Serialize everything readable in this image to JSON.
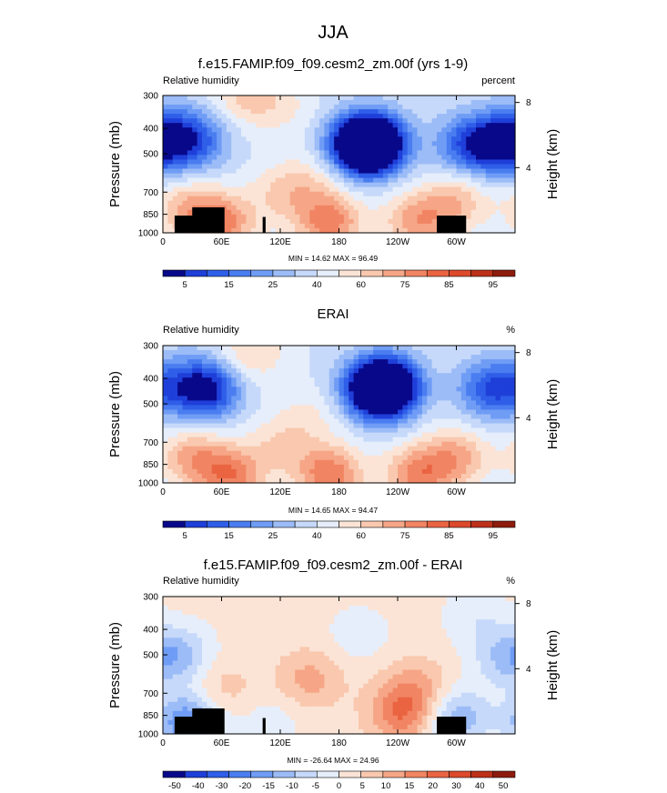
{
  "page_title": "JJA",
  "colors": {
    "abs_scale": [
      "#08088a",
      "#1f3fd9",
      "#2f5ee8",
      "#4a7df0",
      "#6f9cf5",
      "#9cbcf7",
      "#c6d9fa",
      "#e6eefb",
      "#fbe4d6",
      "#f9c8ae",
      "#f6a687",
      "#f18563",
      "#ea6442",
      "#dc4a2b",
      "#bd3019",
      "#8e1c0e"
    ],
    "diff_scale": [
      "#08088a",
      "#1f3fd9",
      "#2f5ee8",
      "#4a7df0",
      "#6f9cf5",
      "#9cbcf7",
      "#c6d9fa",
      "#e6eefb",
      "#fbe4d6",
      "#f9c8ae",
      "#f6a687",
      "#f18563",
      "#ea6442",
      "#dc4a2b",
      "#bd3019",
      "#8e1c0e"
    ]
  },
  "chart_data": [
    {
      "type": "heatmap",
      "title": "f.e15.FAMIP.f09_f09.cesm2_zm.00f (yrs 1-9)",
      "left_label": "Relative humidity",
      "right_label": "percent",
      "ylabel": "Pressure (mb)",
      "ylabel_right": "Height (km)",
      "x_ticks": [
        "0",
        "60E",
        "120E",
        "180",
        "120W",
        "60W"
      ],
      "x_tick_values": [
        0,
        60,
        120,
        180,
        240,
        300
      ],
      "xlim": [
        0,
        360
      ],
      "y_ticks": [
        "300",
        "400",
        "500",
        "700",
        "850",
        "1000"
      ],
      "y_tick_values": [
        300,
        400,
        500,
        700,
        850,
        1000
      ],
      "ylim": [
        300,
        1000
      ],
      "y_scale": "log",
      "height_ticks": [
        "4",
        "8"
      ],
      "height_tick_values": [
        4,
        8
      ],
      "stats": "MIN =  14.62  MAX =  96.49",
      "colorbar_labels": [
        "5",
        "15",
        "25",
        "40",
        "60",
        "75",
        "85",
        "95"
      ],
      "field": [
        {
          "lon": 30,
          "p": 450,
          "v": -30
        },
        {
          "lon": 120,
          "p": 720,
          "v": 12
        },
        {
          "lon": 120,
          "p": 330,
          "v": 8
        },
        {
          "lon": 205,
          "p": 465,
          "v": -55
        },
        {
          "lon": 215,
          "p": 455,
          "v": -45
        },
        {
          "lon": 310,
          "p": 460,
          "v": -25
        },
        {
          "lon": 345,
          "p": 460,
          "v": -40
        },
        {
          "lon": 25,
          "p": 800,
          "v": 18
        },
        {
          "lon": 300,
          "p": 760,
          "v": 18
        },
        {
          "lon": 170,
          "p": 910,
          "v": 30
        },
        {
          "lon": 60,
          "p": 920,
          "v": 28
        },
        {
          "lon": 260,
          "p": 905,
          "v": 24
        },
        {
          "lon": 150,
          "p": 640,
          "v": 10
        },
        {
          "lon": 85,
          "p": 300,
          "v": 14
        },
        {
          "lon": 5,
          "p": 400,
          "v": -12
        }
      ],
      "baseline": 45
    },
    {
      "type": "heatmap",
      "title": "ERAI",
      "left_label": "Relative humidity",
      "right_label": "%",
      "ylabel": "Pressure (mb)",
      "ylabel_right": "Height (km)",
      "x_ticks": [
        "0",
        "60E",
        "120E",
        "180",
        "120W",
        "60W"
      ],
      "x_tick_values": [
        0,
        60,
        120,
        180,
        240,
        300
      ],
      "xlim": [
        0,
        360
      ],
      "y_ticks": [
        "300",
        "400",
        "500",
        "700",
        "850",
        "1000"
      ],
      "y_tick_values": [
        300,
        400,
        500,
        700,
        850,
        1000
      ],
      "ylim": [
        300,
        1000
      ],
      "y_scale": "log",
      "height_ticks": [
        "4",
        "8"
      ],
      "height_tick_values": [
        4,
        8
      ],
      "stats": "MIN =  14.65  MAX =  94.47",
      "colorbar_labels": [
        "5",
        "15",
        "25",
        "40",
        "60",
        "75",
        "85",
        "95"
      ],
      "field": [
        {
          "lon": 43,
          "p": 440,
          "v": -45
        },
        {
          "lon": 120,
          "p": 720,
          "v": 12
        },
        {
          "lon": 220,
          "p": 440,
          "v": -55
        },
        {
          "lon": 230,
          "p": 430,
          "v": -40
        },
        {
          "lon": 335,
          "p": 440,
          "v": -30
        },
        {
          "lon": 30,
          "p": 800,
          "v": 22
        },
        {
          "lon": 300,
          "p": 800,
          "v": 22
        },
        {
          "lon": 170,
          "p": 930,
          "v": 32
        },
        {
          "lon": 70,
          "p": 940,
          "v": 30
        },
        {
          "lon": 260,
          "p": 930,
          "v": 28
        },
        {
          "lon": 90,
          "p": 320,
          "v": 14
        },
        {
          "lon": 8,
          "p": 420,
          "v": -10
        },
        {
          "lon": 150,
          "p": 560,
          "v": 8
        }
      ],
      "baseline": 45
    },
    {
      "type": "heatmap",
      "title": "f.e15.FAMIP.f09_f09.cesm2_zm.00f - ERAI",
      "left_label": "Relative humidity",
      "right_label": "%",
      "ylabel": "Pressure (mb)",
      "ylabel_right": "Height (km)",
      "x_ticks": [
        "0",
        "60E",
        "120E",
        "180",
        "120W",
        "60W"
      ],
      "x_tick_values": [
        0,
        60,
        120,
        180,
        240,
        300
      ],
      "xlim": [
        0,
        360
      ],
      "y_ticks": [
        "300",
        "400",
        "500",
        "700",
        "850",
        "1000"
      ],
      "y_tick_values": [
        300,
        400,
        500,
        700,
        850,
        1000
      ],
      "ylim": [
        300,
        1000
      ],
      "y_scale": "log",
      "height_ticks": [
        "4",
        "8"
      ],
      "height_tick_values": [
        4,
        8
      ],
      "stats": "MIN = -26.64  MAX =  24.96",
      "colorbar_labels": [
        "-50",
        "-40",
        "-30",
        "-20",
        "-15",
        "-10",
        "-5",
        "0",
        "5",
        "10",
        "15",
        "20",
        "30",
        "40",
        "50"
      ],
      "field": [
        {
          "lon": 15,
          "p": 500,
          "v": -14
        },
        {
          "lon": 25,
          "p": 900,
          "v": -22
        },
        {
          "lon": 300,
          "p": 870,
          "v": -16
        },
        {
          "lon": 245,
          "p": 830,
          "v": 18
        },
        {
          "lon": 150,
          "p": 620,
          "v": 10
        },
        {
          "lon": 60,
          "p": 680,
          "v": 6
        },
        {
          "lon": 345,
          "p": 520,
          "v": -8
        },
        {
          "lon": 200,
          "p": 420,
          "v": -5
        },
        {
          "lon": 260,
          "p": 650,
          "v": 8
        },
        {
          "lon": 110,
          "p": 900,
          "v": -5
        },
        {
          "lon": 320,
          "p": 360,
          "v": -6
        }
      ],
      "baseline": 2
    }
  ]
}
